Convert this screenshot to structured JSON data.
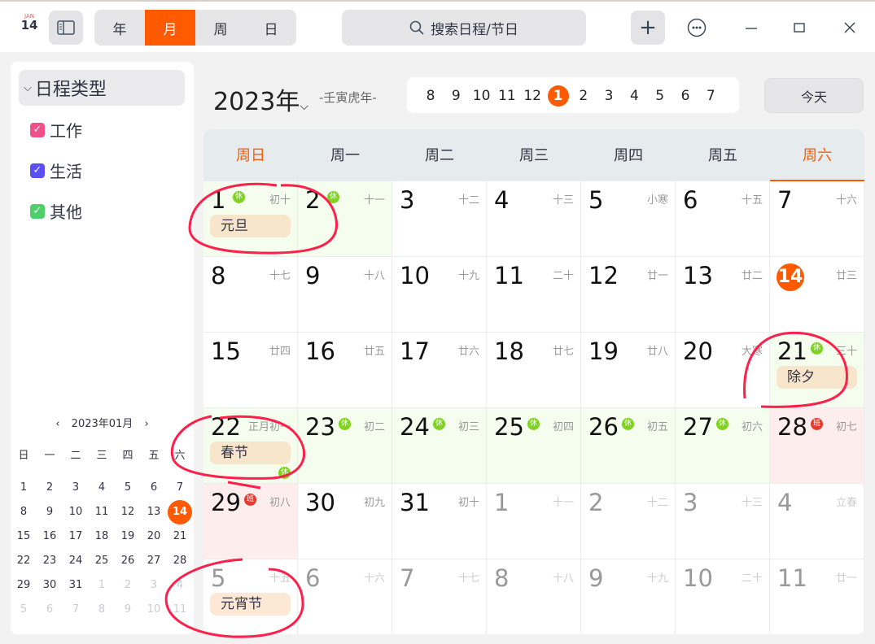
{
  "toolbar": {
    "app_icon": {
      "month": "JAN",
      "day": "14"
    },
    "views": [
      "年",
      "月",
      "周",
      "日"
    ],
    "active_view": "月",
    "search_placeholder": "搜索日程/节日"
  },
  "sidebar": {
    "types_header": "日程类型",
    "types": [
      {
        "label": "工作",
        "color": "#f0508a"
      },
      {
        "label": "生活",
        "color": "#5a4ff0"
      },
      {
        "label": "其他",
        "color": "#4ecf6a"
      }
    ],
    "mini": {
      "title": "2023年01月",
      "weekdays": [
        "日",
        "一",
        "二",
        "三",
        "四",
        "五",
        "六"
      ],
      "days": [
        [
          1,
          2,
          3,
          4,
          5,
          6,
          7
        ],
        [
          8,
          9,
          10,
          11,
          12,
          13,
          14
        ],
        [
          15,
          16,
          17,
          18,
          19,
          20,
          21
        ],
        [
          22,
          23,
          24,
          25,
          26,
          27,
          28
        ],
        [
          29,
          30,
          31,
          1,
          2,
          3,
          4
        ],
        [
          5,
          6,
          7,
          8,
          9,
          10,
          11
        ]
      ],
      "today": 14
    }
  },
  "header": {
    "year": "2023年",
    "ganzhi": "-壬寅虎年-",
    "months": [
      "8",
      "9",
      "10",
      "11",
      "12",
      "1",
      "2",
      "3",
      "4",
      "5",
      "6",
      "7"
    ],
    "active_month": "1",
    "today_label": "今天"
  },
  "weekdays": [
    "周日",
    "周一",
    "周二",
    "周三",
    "周四",
    "周五",
    "周六"
  ],
  "badge_colors": {
    "休": "#7ed321",
    "班": "#e8392c"
  },
  "cells": [
    {
      "d": "1",
      "l": "初十",
      "b": "休",
      "e": "元旦",
      "t": "rest"
    },
    {
      "d": "2",
      "l": "十一",
      "b": "休",
      "t": "rest"
    },
    {
      "d": "3",
      "l": "十二"
    },
    {
      "d": "4",
      "l": "十三"
    },
    {
      "d": "5",
      "l": "小寒"
    },
    {
      "d": "6",
      "l": "十五"
    },
    {
      "d": "7",
      "l": "十六"
    },
    {
      "d": "8",
      "l": "十七"
    },
    {
      "d": "9",
      "l": "十八"
    },
    {
      "d": "10",
      "l": "十九"
    },
    {
      "d": "11",
      "l": "二十"
    },
    {
      "d": "12",
      "l": "廿一"
    },
    {
      "d": "13",
      "l": "廿二"
    },
    {
      "d": "14",
      "l": "廿三",
      "today": true
    },
    {
      "d": "15",
      "l": "廿四"
    },
    {
      "d": "16",
      "l": "廿五"
    },
    {
      "d": "17",
      "l": "廿六"
    },
    {
      "d": "18",
      "l": "廿七"
    },
    {
      "d": "19",
      "l": "廿八"
    },
    {
      "d": "20",
      "l": "大寒"
    },
    {
      "d": "21",
      "l": "三十",
      "b": "休",
      "e": "除夕",
      "t": "rest"
    },
    {
      "d": "22",
      "l": "正月初一",
      "b": "休",
      "e": "春节",
      "t": "rest"
    },
    {
      "d": "23",
      "l": "初二",
      "b": "休",
      "t": "rest"
    },
    {
      "d": "24",
      "l": "初三",
      "b": "休",
      "t": "rest"
    },
    {
      "d": "25",
      "l": "初四",
      "b": "休",
      "t": "rest"
    },
    {
      "d": "26",
      "l": "初五",
      "b": "休",
      "t": "rest"
    },
    {
      "d": "27",
      "l": "初六",
      "b": "休",
      "t": "rest"
    },
    {
      "d": "28",
      "l": "初七",
      "b": "班",
      "t": "work"
    },
    {
      "d": "29",
      "l": "初八",
      "b": "班",
      "t": "work"
    },
    {
      "d": "30",
      "l": "初九"
    },
    {
      "d": "31",
      "l": "初十"
    },
    {
      "d": "1",
      "l": "十一",
      "dim": true
    },
    {
      "d": "2",
      "l": "十二",
      "dim": true
    },
    {
      "d": "3",
      "l": "十三",
      "dim": true
    },
    {
      "d": "4",
      "l": "立春",
      "dim": true
    },
    {
      "d": "5",
      "l": "十五",
      "e": "元宵节",
      "dim": true
    },
    {
      "d": "6",
      "l": "十六",
      "dim": true
    },
    {
      "d": "7",
      "l": "十七",
      "dim": true
    },
    {
      "d": "8",
      "l": "十八",
      "dim": true
    },
    {
      "d": "9",
      "l": "十九",
      "dim": true
    },
    {
      "d": "10",
      "l": "二十",
      "dim": true
    },
    {
      "d": "11",
      "l": "廿一",
      "dim": true
    }
  ],
  "colors": {
    "accent": "#ff5a00",
    "ink": "#ff1f4b"
  }
}
